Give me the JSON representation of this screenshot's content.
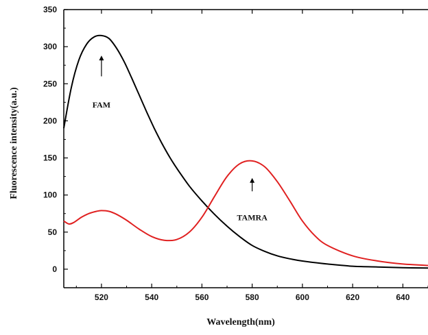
{
  "chart_data": {
    "type": "line",
    "title": "",
    "xlabel": "Wavelength(nm)",
    "ylabel": "Fluorescence intensity(a.u.)",
    "xlim": [
      505,
      650
    ],
    "ylim": [
      -25,
      350
    ],
    "xticks": [
      520,
      540,
      560,
      580,
      600,
      620,
      640
    ],
    "yticks": [
      0,
      50,
      100,
      150,
      200,
      250,
      300,
      350
    ],
    "grid": false,
    "legend": "none",
    "series": [
      {
        "color": "#000000",
        "x": [
          505,
          508,
          511,
          514,
          517,
          520,
          523,
          526,
          529,
          532,
          535,
          538,
          541,
          544,
          547,
          550,
          555,
          560,
          565,
          570,
          575,
          580,
          585,
          590,
          595,
          600,
          610,
          620,
          630,
          640,
          650
        ],
        "y": [
          190,
          245,
          282,
          303,
          313,
          315,
          311,
          298,
          280,
          258,
          235,
          212,
          190,
          170,
          152,
          136,
          112,
          92,
          74,
          58,
          44,
          32,
          24,
          18,
          14,
          11,
          7,
          4,
          3,
          2,
          1.5
        ]
      },
      {
        "color": "#e02020",
        "x": [
          505,
          507,
          509,
          512,
          515,
          518,
          520,
          523,
          526,
          530,
          535,
          540,
          545,
          550,
          555,
          560,
          565,
          570,
          575,
          580,
          585,
          590,
          595,
          600,
          605,
          610,
          620,
          630,
          640,
          650
        ],
        "y": [
          65,
          61,
          63,
          70,
          75,
          78,
          79,
          78,
          74,
          66,
          54,
          44,
          39,
          40,
          50,
          70,
          98,
          125,
          142,
          146,
          138,
          118,
          92,
          65,
          45,
          32,
          18,
          11,
          7,
          5
        ]
      }
    ],
    "annotations": [
      {
        "text": "FAM",
        "x": 520,
        "y": 218,
        "arrow_from": 260,
        "arrow_to": 288
      },
      {
        "text": "TAMRA",
        "x": 580,
        "y": 66,
        "arrow_from": 105,
        "arrow_to": 123
      }
    ]
  }
}
